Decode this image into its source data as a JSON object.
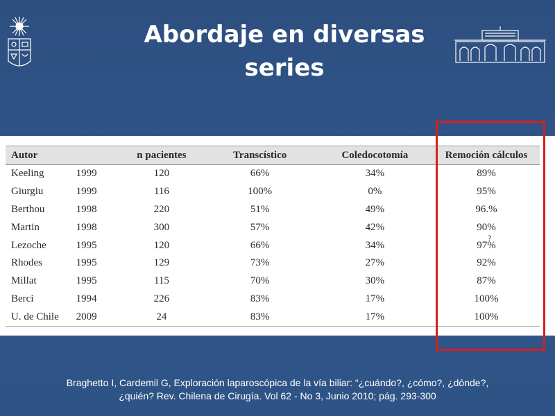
{
  "slide": {
    "title_line1": "Abordaje en diversas",
    "title_line2": "series"
  },
  "table": {
    "headers": [
      "Autor",
      "",
      "n pacientes",
      "Transcístico",
      "Coledocotomía",
      "Remoción cálculos"
    ],
    "rows": [
      [
        "Keeling",
        "1999",
        "120",
        "66%",
        "34%",
        "89%"
      ],
      [
        "Giurgiu",
        "1999",
        "116",
        "100%",
        "0%",
        "95%"
      ],
      [
        "Berthou",
        "1998",
        "220",
        "51%",
        "49%",
        "96.%"
      ],
      [
        "Martin",
        "1998",
        "300",
        "57%",
        "42%",
        "90%"
      ],
      [
        "Lezoche",
        "1995",
        "120",
        "66%",
        "34%",
        "97%"
      ],
      [
        "Rhodes",
        "1995",
        "129",
        "73%",
        "27%",
        "92%"
      ],
      [
        "Millat",
        "1995",
        "115",
        "70%",
        "30%",
        "87%"
      ],
      [
        "Berci",
        "1994",
        "226",
        "83%",
        "17%",
        "100%"
      ],
      [
        "U. de Chile",
        "2009",
        "24",
        "83%",
        "17%",
        "100%"
      ]
    ],
    "annotation_mark": "?"
  },
  "citation": {
    "line1": "Braghetto I, Cardemil G, Exploración laparoscópica de la vía biliar: “¿cuándo?, ¿cómo?, ¿dónde?,",
    "line2": "¿quién? Rev. Chilena de Cirugía. Vol 62 - No 3, Junio 2010; pág. 293-300"
  },
  "colors": {
    "background": "#2f5385",
    "highlight": "#d81e1e",
    "header_row": "#e2e2e2"
  },
  "icons": {
    "left_logo": "university-crest-icon",
    "right_logo": "university-building-icon"
  }
}
